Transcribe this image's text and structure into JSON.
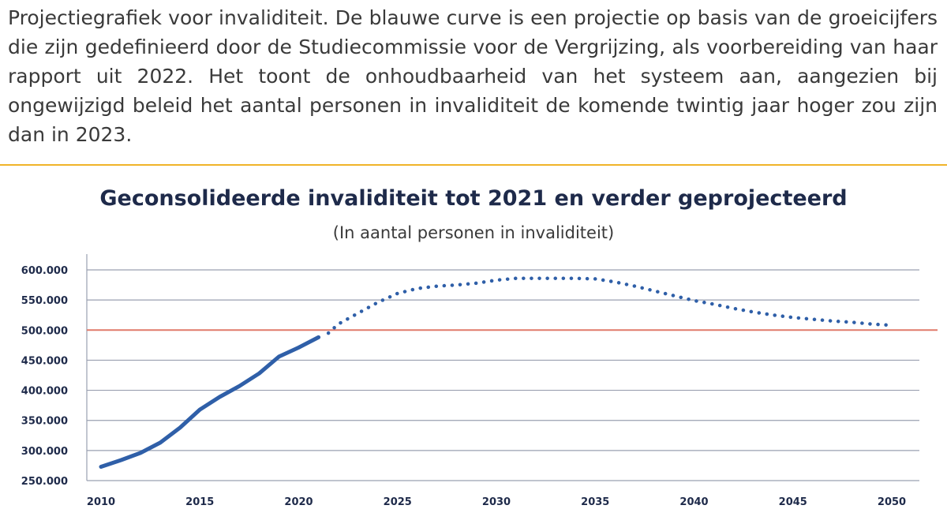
{
  "caption": "Projectiegrafiek voor invaliditeit. De blauwe curve is een projectie op basis van de groeicijfers die zijn gedefinieerd door de Studiecommissie voor de Vergrijzing, als voorbereiding van haar rapport uit 2022. Het toont de onhoudbaarheid van het systeem aan, aangezien bij ongewijzigd beleid het aantal personen in invaliditeit de komende twintig jaar hoger zou zijn dan in 2023.",
  "chart_data": {
    "type": "line",
    "title": "Geconsolideerde invaliditeit tot 2021 en verder geprojecteerd",
    "subtitle": "(In aantal personen in invaliditeit)",
    "xlabel": "",
    "ylabel": "",
    "x_ticks": [
      "2010",
      "2015",
      "2020",
      "2025",
      "2030",
      "2035",
      "2040",
      "2045",
      "2050"
    ],
    "y_ticks": [
      {
        "value": 250000,
        "label": "250.000"
      },
      {
        "value": 300000,
        "label": "300.000"
      },
      {
        "value": 350000,
        "label": "350.000"
      },
      {
        "value": 400000,
        "label": "400.000"
      },
      {
        "value": 450000,
        "label": "450.000"
      },
      {
        "value": 500000,
        "label": "500.000"
      },
      {
        "value": 550000,
        "label": "550.000"
      },
      {
        "value": 600000,
        "label": "600.000"
      }
    ],
    "xlim": [
      2010,
      2050
    ],
    "ylim": [
      250000,
      600000
    ],
    "grid": true,
    "colors": {
      "series": "#2f5fa8",
      "reference": "#e07a6a",
      "reference_label": "#e07a6a",
      "grid": "#9aa0b0",
      "tick": "#1e2a4a"
    },
    "reference_line": {
      "value": 500000
    },
    "series": [
      {
        "style": "solid",
        "x": [
          2010,
          2011,
          2012,
          2013,
          2014,
          2015,
          2016,
          2017,
          2018,
          2019,
          2020,
          2021
        ],
        "y": [
          273000,
          284000,
          296000,
          313000,
          338000,
          368000,
          389000,
          407000,
          428000,
          456000,
          471000,
          488000
        ]
      },
      {
        "style": "dotted",
        "x": [
          2021.5,
          2022,
          2023,
          2024,
          2025,
          2026,
          2027,
          2028,
          2029,
          2030,
          2031,
          2032,
          2033,
          2034,
          2035,
          2036,
          2037,
          2038,
          2039,
          2040,
          2041,
          2042,
          2043,
          2044,
          2045,
          2046,
          2047,
          2048,
          2049,
          2050
        ],
        "y": [
          495000,
          510000,
          528000,
          546000,
          561000,
          569000,
          573000,
          575000,
          578000,
          583000,
          586000,
          586000,
          586000,
          586000,
          585000,
          580000,
          573000,
          565000,
          557000,
          549000,
          543000,
          536000,
          530000,
          525000,
          521000,
          518000,
          515000,
          513000,
          510000,
          508000
        ]
      }
    ]
  }
}
